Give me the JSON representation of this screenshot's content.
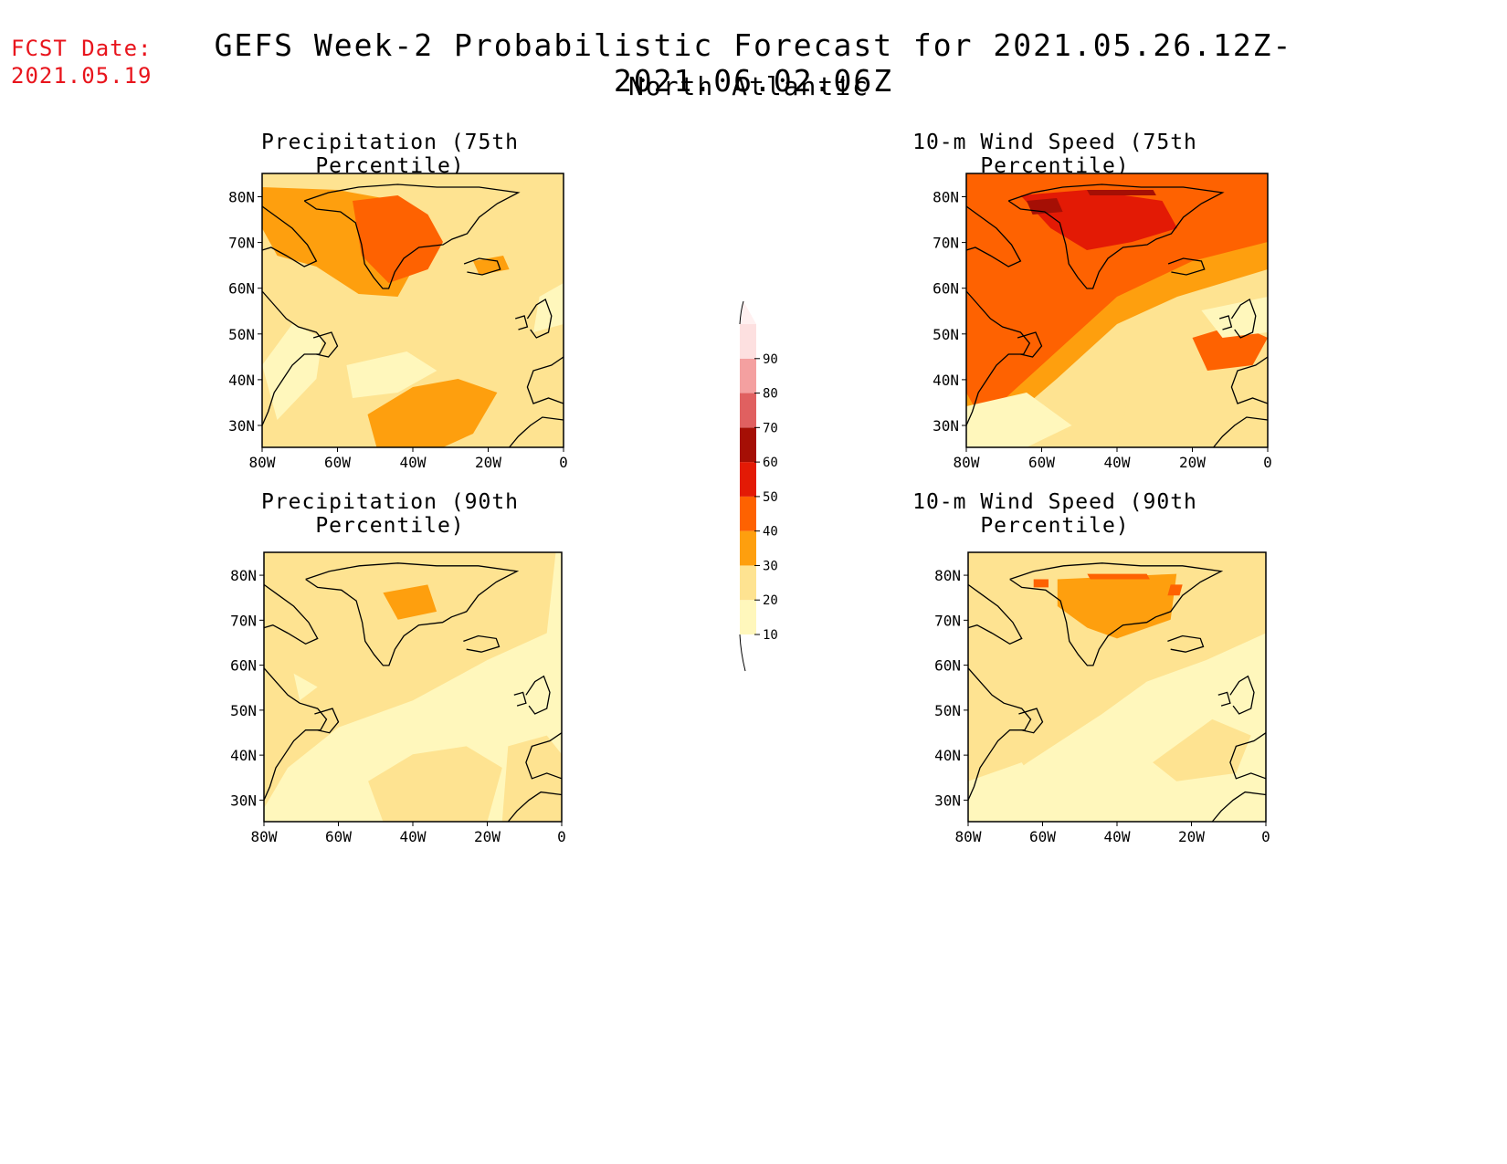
{
  "header": {
    "fcst_label": "FCST Date:",
    "fcst_date": "2021.05.19",
    "title": "GEFS Week-2 Probabilistic Forecast for 2021.05.26.12Z-2021.06.02.06Z",
    "region": "North Atlantic"
  },
  "panels": [
    {
      "id": "precip75",
      "title": "Precipitation (75th Percentile)"
    },
    {
      "id": "wind75",
      "title": "10-m Wind Speed (75th Percentile)"
    },
    {
      "id": "precip90",
      "title": "Precipitation (90th Percentile)"
    },
    {
      "id": "wind90",
      "title": "10-m Wind Speed (90th Percentile)"
    }
  ],
  "axes": {
    "lat_ticks": [
      "80N",
      "70N",
      "60N",
      "50N",
      "40N",
      "30N"
    ],
    "lon_ticks": [
      "80W",
      "60W",
      "40W",
      "20W",
      "0"
    ]
  },
  "colorbar": {
    "levels": [
      "10",
      "20",
      "30",
      "40",
      "50",
      "60",
      "70",
      "80",
      "90"
    ],
    "colors": [
      "#fff7bc",
      "#fee391",
      "#fe9f0e",
      "#fe6201",
      "#e31a05",
      "#a50f05",
      "#e06060",
      "#f4a0a0",
      "#fde0e0",
      "#fff0f0"
    ]
  }
}
